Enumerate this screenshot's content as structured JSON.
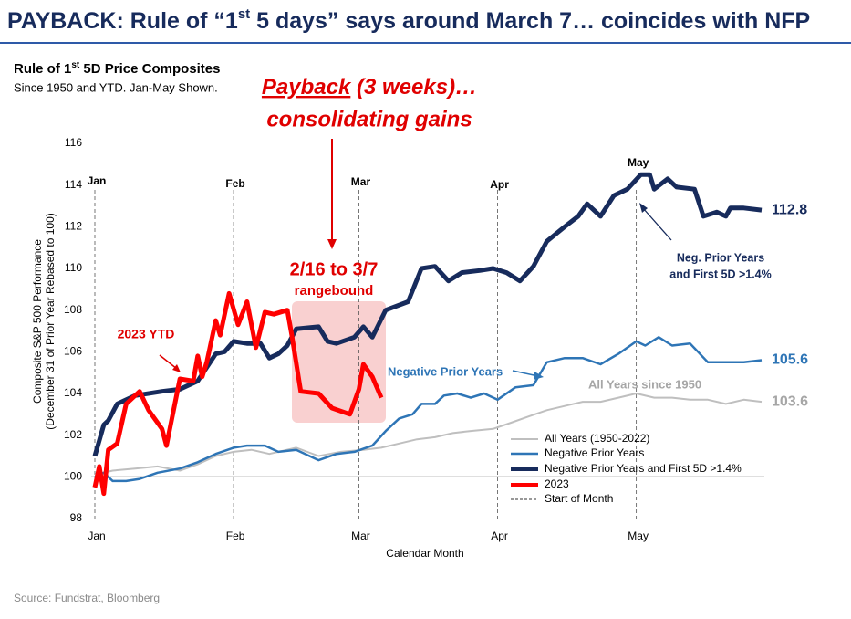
{
  "chart_data": {
    "type": "line",
    "title": [
      "PAYBACK: Rule of “1",
      "st",
      " 5 days” says around March 7… coincides with NFP"
    ],
    "chart_title": [
      "Rule of 1",
      "st",
      " 5D Price Composites"
    ],
    "subtitle": "Since 1950 and YTD. Jan-May Shown.",
    "xlabel": "Calendar Month",
    "ylabel": [
      "Composite S&P 500 Performance",
      "(December 31 of Prior Year Rebased to 100)"
    ],
    "xlim": [
      1,
      150
    ],
    "ylim": [
      98,
      116
    ],
    "yticks": [
      98,
      100,
      102,
      104,
      106,
      108,
      110,
      112,
      114,
      116
    ],
    "xticks": [
      {
        "value": 1,
        "label": "Jan"
      },
      {
        "value": 32,
        "label": "Feb"
      },
      {
        "value": 60,
        "label": "Mar"
      },
      {
        "value": 91,
        "label": "Apr"
      },
      {
        "value": 122,
        "label": "May"
      }
    ],
    "baseline": 100,
    "month_line_name": "Start of Month",
    "series": [
      {
        "name": "All Years (1950-2022)",
        "color": "#bfbfbf",
        "width": 2,
        "x": [
          1,
          5,
          10,
          15,
          20,
          24,
          28,
          32,
          36,
          40,
          46,
          51,
          56,
          61,
          65,
          69,
          73,
          77,
          81,
          85,
          90,
          94,
          98,
          102,
          106,
          110,
          114,
          118,
          122,
          126,
          130,
          134,
          138,
          142,
          146,
          150
        ],
        "values": [
          100.1,
          100.3,
          100.4,
          100.5,
          100.3,
          100.6,
          101.0,
          101.2,
          101.3,
          101.1,
          101.4,
          101.0,
          101.2,
          101.3,
          101.4,
          101.6,
          101.8,
          101.9,
          102.1,
          102.2,
          102.3,
          102.6,
          102.9,
          103.2,
          103.4,
          103.6,
          103.6,
          103.8,
          104.0,
          103.8,
          103.8,
          103.7,
          103.7,
          103.5,
          103.7,
          103.6
        ]
      },
      {
        "name": "Negative Prior Years",
        "color": "#2e75b6",
        "width": 2.5,
        "x": [
          1,
          3,
          5,
          8,
          11,
          15,
          20,
          24,
          28,
          32,
          35,
          39,
          42,
          46,
          51,
          55,
          59,
          63,
          66,
          69,
          72,
          74,
          77,
          79,
          82,
          85,
          88,
          91,
          95,
          99,
          102,
          106,
          110,
          114,
          118,
          122,
          124,
          127,
          130,
          134,
          138,
          142,
          146,
          150
        ],
        "values": [
          100.0,
          100.2,
          99.8,
          99.8,
          99.9,
          100.2,
          100.4,
          100.7,
          101.1,
          101.4,
          101.5,
          101.5,
          101.2,
          101.3,
          100.8,
          101.1,
          101.2,
          101.5,
          102.2,
          102.8,
          103.0,
          103.5,
          103.5,
          103.9,
          104.0,
          103.8,
          104.0,
          103.7,
          104.3,
          104.4,
          105.5,
          105.7,
          105.7,
          105.4,
          105.9,
          106.5,
          106.3,
          106.7,
          106.3,
          106.4,
          105.5,
          105.5,
          105.5,
          105.6
        ]
      },
      {
        "name": "Negative Prior Years and First 5D >1.4%",
        "color": "#172b5c",
        "width": 5,
        "x": [
          1,
          3,
          4,
          6,
          10,
          16,
          20,
          24,
          28,
          30,
          32,
          35,
          38,
          40,
          42,
          44,
          46,
          51,
          53,
          55,
          59,
          61,
          63,
          66,
          71,
          74,
          77,
          80,
          83,
          87,
          90,
          93,
          96,
          99,
          102,
          106,
          109,
          111,
          114,
          117,
          120,
          123,
          125,
          126,
          129,
          131,
          135,
          137,
          140,
          142,
          143,
          146,
          150
        ],
        "values": [
          101.0,
          102.5,
          102.7,
          103.5,
          103.9,
          104.1,
          104.2,
          104.6,
          105.9,
          106.0,
          106.5,
          106.4,
          106.4,
          105.7,
          105.9,
          106.3,
          107.1,
          107.2,
          106.5,
          106.4,
          106.7,
          107.2,
          106.7,
          108.0,
          108.4,
          110.0,
          110.1,
          109.4,
          109.8,
          109.9,
          110.0,
          109.8,
          109.4,
          110.1,
          111.3,
          112.0,
          112.5,
          113.1,
          112.5,
          113.5,
          113.8,
          114.5,
          114.5,
          113.8,
          114.3,
          113.9,
          113.8,
          112.5,
          112.7,
          112.5,
          112.9,
          112.9,
          112.8
        ]
      },
      {
        "name": "2023",
        "color": "#ff0000",
        "width": 5,
        "x": [
          1,
          2,
          3,
          4,
          6,
          8,
          11,
          13,
          16,
          17,
          20,
          23,
          24,
          25,
          26,
          28,
          29,
          31,
          33,
          35,
          37,
          39,
          41,
          44,
          45,
          47,
          51,
          54,
          58,
          60,
          61,
          63,
          65
        ],
        "values": [
          99.5,
          100.5,
          99.2,
          101.3,
          101.6,
          103.5,
          104.1,
          103.2,
          102.3,
          101.5,
          104.7,
          104.6,
          105.8,
          104.8,
          105.5,
          107.5,
          106.8,
          108.8,
          107.3,
          108.4,
          106.2,
          107.9,
          107.8,
          108.0,
          106.8,
          104.1,
          104.0,
          103.3,
          103.0,
          104.2,
          105.4,
          104.8,
          103.8
        ]
      }
    ],
    "annotations": {
      "payback": "Payback",
      "payback_rest": " (3 weeks)…",
      "consolidating": "consolidating gains",
      "range_dates": "2/16 to 3/7",
      "rangebound": "rangebound",
      "ytd": "2023 YTD",
      "neg_prior": "Negative Prior Years",
      "all_years": "All Years since 1950",
      "neg_first_1": "Neg. Prior Years",
      "neg_first_2": "and First 5D >1.4%"
    },
    "source": "Source: Fundstrat, Bloomberg"
  }
}
